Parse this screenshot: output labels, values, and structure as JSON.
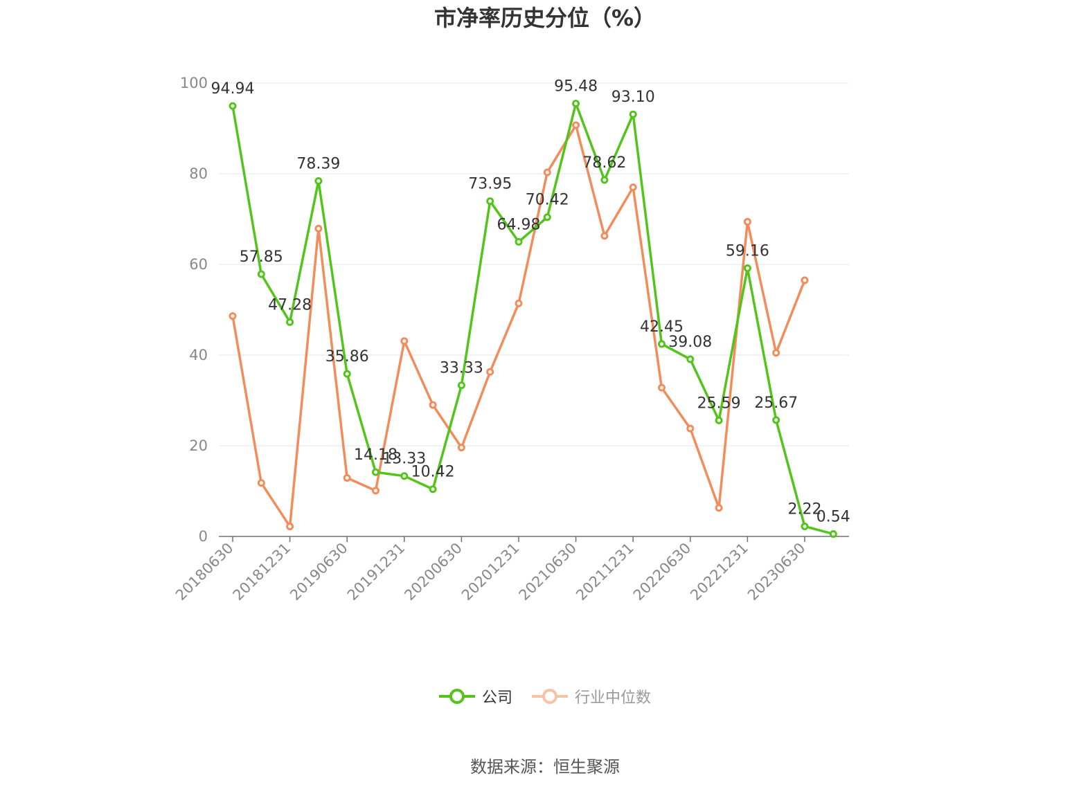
{
  "chart_data": {
    "type": "line",
    "title": "市净率历史分位（%）",
    "source": "数据来源：恒生聚源",
    "ylim": [
      0,
      100
    ],
    "y_ticks": [
      "0",
      "20",
      "40",
      "60",
      "80",
      "100"
    ],
    "x_tick_labels": [
      "20180630",
      "20181231",
      "20190630",
      "20191231",
      "20200630",
      "20201231",
      "20210630",
      "20211231",
      "20220630",
      "20221231",
      "20230630"
    ],
    "grid": true,
    "legend_position": "bottom",
    "series": [
      {
        "name": "公司",
        "color": "#52c41a",
        "values": [
          94.94,
          57.85,
          47.28,
          78.39,
          35.86,
          14.18,
          13.33,
          10.42,
          33.33,
          73.95,
          64.98,
          70.42,
          95.48,
          78.62,
          93.1,
          42.45,
          39.08,
          25.59,
          59.16,
          25.67,
          2.22,
          0.54
        ],
        "labels": [
          "94.94",
          "57.85",
          "47.28",
          "78.39",
          "35.86",
          "14.18",
          "13.33",
          "10.42",
          "33.33",
          "73.95",
          "64.98",
          "70.42",
          "95.48",
          "78.62",
          "93.10",
          "42.45",
          "39.08",
          "25.59",
          "59.16",
          "25.67",
          "2.22",
          "0.54"
        ]
      },
      {
        "name": "行业中位数",
        "color": "#f28c5a",
        "values": [
          48.6,
          11.8,
          2.2,
          67.9,
          12.9,
          10.1,
          43.1,
          29.0,
          19.6,
          36.3,
          51.4,
          80.3,
          90.7,
          66.3,
          77.0,
          32.8,
          23.8,
          6.3,
          69.4,
          40.5,
          56.5
        ]
      }
    ]
  },
  "legend": {
    "company": "公司",
    "industry": "行业中位数"
  }
}
